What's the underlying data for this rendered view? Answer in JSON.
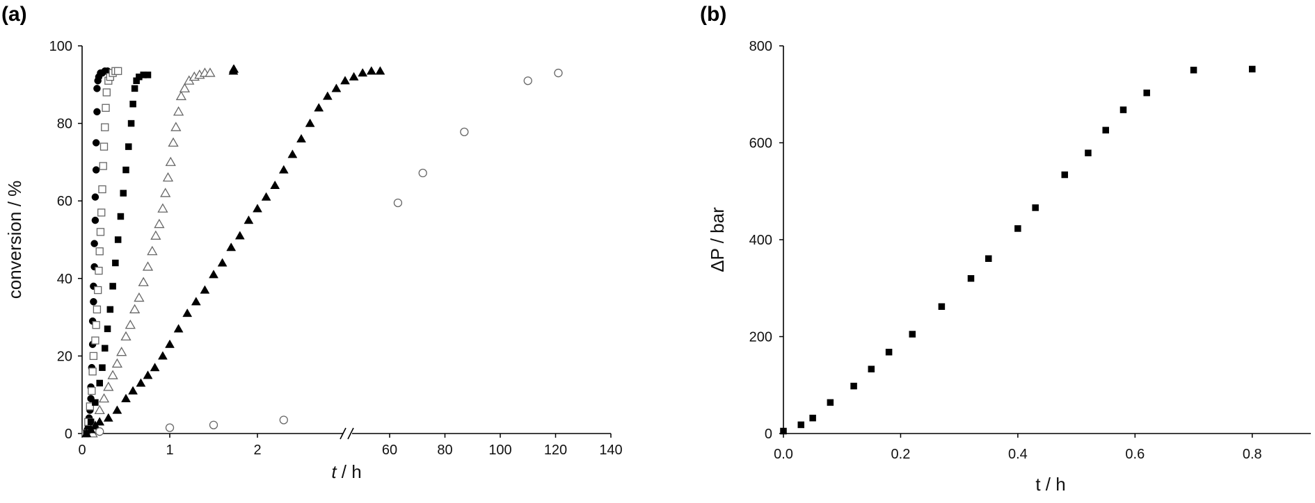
{
  "chart_data": [
    {
      "panel": "(a)",
      "type": "scatter",
      "xlabel_italic": "t",
      "xlabel_rest": " / h",
      "ylabel": "conversion / %",
      "ylim": [
        0,
        100
      ],
      "yticks": [
        0,
        20,
        40,
        60,
        80,
        100
      ],
      "x_break": true,
      "xlim_left": [
        0,
        3.4
      ],
      "xticks_left": [
        0,
        1,
        2
      ],
      "xlim_right": [
        50,
        140
      ],
      "xticks_right": [
        60,
        80,
        100,
        120,
        140
      ],
      "series": [
        {
          "marker": "circle-filled",
          "points": [
            [
              0.05,
              0
            ],
            [
              0.06,
              1
            ],
            [
              0.07,
              2
            ],
            [
              0.08,
              4
            ],
            [
              0.09,
              6
            ],
            [
              0.1,
              9
            ],
            [
              0.1,
              12
            ],
            [
              0.11,
              17
            ],
            [
              0.12,
              23
            ],
            [
              0.12,
              29
            ],
            [
              0.13,
              34
            ],
            [
              0.13,
              38
            ],
            [
              0.14,
              43
            ],
            [
              0.14,
              49
            ],
            [
              0.15,
              55
            ],
            [
              0.15,
              61
            ],
            [
              0.16,
              68
            ],
            [
              0.16,
              75
            ],
            [
              0.17,
              83
            ],
            [
              0.17,
              89
            ],
            [
              0.18,
              91
            ],
            [
              0.19,
              92
            ],
            [
              0.21,
              93
            ],
            [
              0.23,
              93
            ],
            [
              0.26,
              93.5
            ],
            [
              0.29,
              93.5
            ]
          ]
        },
        {
          "marker": "square-open",
          "points": [
            [
              0.04,
              0
            ],
            [
              0.07,
              3
            ],
            [
              0.09,
              7
            ],
            [
              0.11,
              11
            ],
            [
              0.12,
              16
            ],
            [
              0.13,
              20
            ],
            [
              0.15,
              24
            ],
            [
              0.16,
              28
            ],
            [
              0.17,
              32
            ],
            [
              0.18,
              37
            ],
            [
              0.19,
              42
            ],
            [
              0.2,
              47
            ],
            [
              0.21,
              52
            ],
            [
              0.22,
              57
            ],
            [
              0.23,
              63
            ],
            [
              0.24,
              69
            ],
            [
              0.25,
              74
            ],
            [
              0.26,
              79
            ],
            [
              0.27,
              84
            ],
            [
              0.28,
              88
            ],
            [
              0.3,
              91
            ],
            [
              0.32,
              92
            ],
            [
              0.35,
              93
            ],
            [
              0.38,
              93.5
            ],
            [
              0.41,
              93.5
            ]
          ]
        },
        {
          "marker": "square-filled",
          "points": [
            [
              0.05,
              0
            ],
            [
              0.1,
              3
            ],
            [
              0.15,
              8
            ],
            [
              0.2,
              13
            ],
            [
              0.23,
              17
            ],
            [
              0.26,
              22
            ],
            [
              0.29,
              27
            ],
            [
              0.32,
              32
            ],
            [
              0.35,
              38
            ],
            [
              0.38,
              44
            ],
            [
              0.41,
              50
            ],
            [
              0.44,
              56
            ],
            [
              0.47,
              62
            ],
            [
              0.5,
              68
            ],
            [
              0.53,
              74
            ],
            [
              0.56,
              80
            ],
            [
              0.58,
              85
            ],
            [
              0.6,
              89
            ],
            [
              0.62,
              91
            ],
            [
              0.65,
              92
            ],
            [
              0.7,
              92.5
            ],
            [
              0.75,
              92.5
            ]
          ]
        },
        {
          "marker": "triangle-open",
          "points": [
            [
              0.12,
              0
            ],
            [
              0.15,
              2
            ],
            [
              0.2,
              6
            ],
            [
              0.25,
              9
            ],
            [
              0.3,
              12
            ],
            [
              0.35,
              15
            ],
            [
              0.4,
              18
            ],
            [
              0.45,
              21
            ],
            [
              0.5,
              25
            ],
            [
              0.55,
              28
            ],
            [
              0.6,
              32
            ],
            [
              0.65,
              35
            ],
            [
              0.7,
              39
            ],
            [
              0.75,
              43
            ],
            [
              0.8,
              47
            ],
            [
              0.84,
              51
            ],
            [
              0.88,
              54
            ],
            [
              0.92,
              58
            ],
            [
              0.95,
              62
            ],
            [
              0.98,
              66
            ],
            [
              1.01,
              70
            ],
            [
              1.04,
              75
            ],
            [
              1.07,
              79
            ],
            [
              1.1,
              83
            ],
            [
              1.13,
              87
            ],
            [
              1.17,
              89
            ],
            [
              1.22,
              91
            ],
            [
              1.28,
              92
            ],
            [
              1.34,
              92.5
            ],
            [
              1.4,
              93
            ],
            [
              1.46,
              93
            ]
          ]
        },
        {
          "marker": "triangle-filled",
          "points": [
            [
              0.05,
              0
            ],
            [
              0.1,
              1
            ],
            [
              0.15,
              2
            ],
            [
              0.2,
              3
            ],
            [
              0.3,
              4
            ],
            [
              0.4,
              6
            ],
            [
              0.5,
              9
            ],
            [
              0.58,
              11
            ],
            [
              0.67,
              13
            ],
            [
              0.75,
              15
            ],
            [
              0.83,
              17
            ],
            [
              0.92,
              20
            ],
            [
              1.0,
              23
            ],
            [
              1.1,
              27
            ],
            [
              1.2,
              31
            ],
            [
              1.3,
              34
            ],
            [
              1.4,
              37
            ],
            [
              1.5,
              41
            ],
            [
              1.6,
              44
            ],
            [
              1.7,
              48
            ],
            [
              1.8,
              51
            ],
            [
              1.9,
              55
            ],
            [
              2.0,
              58
            ],
            [
              2.1,
              61
            ],
            [
              2.2,
              64
            ],
            [
              2.3,
              68
            ],
            [
              2.4,
              72
            ],
            [
              2.5,
              76
            ],
            [
              2.6,
              80
            ],
            [
              2.7,
              84
            ],
            [
              2.8,
              87
            ],
            [
              2.9,
              89
            ],
            [
              3.0,
              91
            ],
            [
              3.1,
              92
            ],
            [
              3.2,
              93
            ],
            [
              3.3,
              93.5
            ],
            [
              3.4,
              93.5
            ],
            [
              3.5,
              93.5
            ],
            [
              3.6,
              94
            ],
            [
              3.7,
              94
            ]
          ]
        },
        {
          "marker": "circle-open",
          "points": [
            [
              0.2,
              0.5
            ],
            [
              1.0,
              1.5
            ],
            [
              1.5,
              2.2
            ],
            [
              2.3,
              3.5
            ],
            [
              63,
              59.5
            ],
            [
              72,
              67.2
            ],
            [
              87,
              77.8
            ],
            [
              110,
              91
            ],
            [
              121,
              93
            ]
          ]
        }
      ]
    },
    {
      "panel": "(b)",
      "type": "scatter",
      "xlabel": "t / h",
      "ylabel": "ΔP / bar",
      "xlim": [
        0,
        0.9
      ],
      "xticks": [
        "0.0",
        "0.2",
        "0.4",
        "0.6",
        "0.8"
      ],
      "ylim": [
        0,
        800
      ],
      "yticks": [
        0,
        200,
        400,
        600,
        800
      ],
      "series": [
        {
          "marker": "square-filled",
          "x": [
            0.0,
            0.03,
            0.05,
            0.08,
            0.12,
            0.15,
            0.18,
            0.22,
            0.27,
            0.32,
            0.35,
            0.4,
            0.43,
            0.48,
            0.52,
            0.55,
            0.58,
            0.62,
            0.7,
            0.8
          ],
          "y": [
            5,
            18,
            32,
            64,
            98,
            133,
            168,
            205,
            262,
            320,
            361,
            423,
            466,
            534,
            579,
            626,
            668,
            703,
            750,
            752
          ]
        }
      ]
    }
  ]
}
